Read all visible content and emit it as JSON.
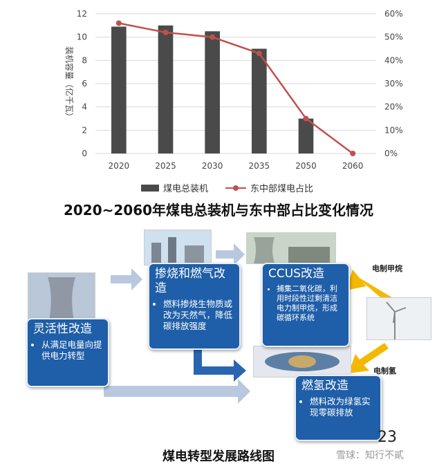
{
  "chart_data": {
    "type": "bar",
    "categories": [
      "2020",
      "2025",
      "2030",
      "2035",
      "2050",
      "2060"
    ],
    "series": [
      {
        "name": "煤电总装机",
        "type": "bar",
        "axis": "left",
        "values": [
          10.9,
          11.0,
          10.5,
          9.0,
          3.0,
          0
        ]
      },
      {
        "name": "东中部煤电占比",
        "type": "line",
        "axis": "right",
        "values": [
          0.56,
          0.52,
          0.5,
          0.43,
          0.15,
          0
        ]
      }
    ],
    "title": "2020~2060年煤电总装机与东中部占比变化情况",
    "xlabel": "",
    "ylabel": "装机容量（亿千瓦）",
    "ylim": [
      0,
      12
    ],
    "yticks": [
      "0",
      "2",
      "4",
      "6",
      "8",
      "10",
      "12"
    ],
    "y2lim": [
      0,
      0.6
    ],
    "y2ticks": [
      "0%",
      "10%",
      "20%",
      "30%",
      "40%",
      "50%",
      "60%"
    ],
    "legend_position": "bottom",
    "grid": "horizontal",
    "colors": {
      "bar": "#4a4a4a",
      "line": "#c0504d"
    }
  },
  "roadmap": {
    "title": "煤电转型发展路线图",
    "page_number": "23",
    "watermark": "雪球：知行不貳",
    "panels": {
      "flex": {
        "title": "灵活性改造",
        "bullets": [
          "从满足电量向提供电力转型"
        ]
      },
      "cofire": {
        "title": "掺烧和燃气改造",
        "bullets": [
          "燃料掺烧生物质或改为天然气，降低碳排放强度"
        ]
      },
      "ccus": {
        "title": "CCUS改造",
        "bullets": [
          "捕集二氧化碳，利用时段性过剩清洁电力制甲烷，形成碳循环系统"
        ]
      },
      "hydrogen": {
        "title": "燃氢改造",
        "bullets": [
          "燃料改为绿氢实现零碳排放"
        ]
      }
    },
    "side_labels": {
      "methane": "电制甲烷",
      "hydrogen": "电制氢"
    }
  }
}
